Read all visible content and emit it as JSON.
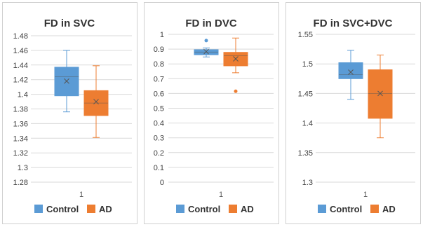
{
  "colors": {
    "control": "#5b9bd5",
    "ad": "#ed7d31",
    "grid": "#d9d9d9"
  },
  "chart_data": [
    {
      "type": "box",
      "title": "FD in SVC",
      "categories": [
        "1"
      ],
      "ylim": [
        1.28,
        1.48
      ],
      "yticks": [
        "1.48",
        "1.46",
        "1.44",
        "1.42",
        "1.4",
        "1.38",
        "1.36",
        "1.34",
        "1.32",
        "1.3",
        "1.28"
      ],
      "grid": true,
      "legend": "bottom",
      "series": [
        {
          "name": "Control",
          "min": 1.376,
          "q1": 1.398,
          "median": 1.424,
          "q3": 1.437,
          "max": 1.46,
          "mean": 1.418,
          "outliers": []
        },
        {
          "name": "AD",
          "min": 1.341,
          "q1": 1.371,
          "median": 1.388,
          "q3": 1.405,
          "max": 1.439,
          "mean": 1.39,
          "outliers": []
        }
      ]
    },
    {
      "type": "box",
      "title": "FD in DVC",
      "categories": [
        "1"
      ],
      "ylim": [
        0,
        1
      ],
      "yticks": [
        "1",
        "0.9",
        "0.8",
        "0.7",
        "0.6",
        "0.5",
        "0.4",
        "0.3",
        "0.2",
        "0.1",
        "0"
      ],
      "grid": true,
      "legend": "bottom",
      "series": [
        {
          "name": "Control",
          "min": 0.847,
          "q1": 0.862,
          "median": 0.88,
          "q3": 0.896,
          "max": 0.908,
          "mean": 0.883,
          "outliers": [
            0.958
          ]
        },
        {
          "name": "AD",
          "min": 0.74,
          "q1": 0.787,
          "median": 0.855,
          "q3": 0.878,
          "max": 0.975,
          "mean": 0.834,
          "outliers": [
            0.615
          ]
        }
      ]
    },
    {
      "type": "box",
      "title": "FD in SVC+DVC",
      "categories": [
        "1"
      ],
      "ylim": [
        1.3,
        1.55
      ],
      "yticks": [
        "1.55",
        "1.5",
        "1.45",
        "1.4",
        "1.35",
        "1.3"
      ],
      "grid": true,
      "legend": "bottom",
      "series": [
        {
          "name": "Control",
          "min": 1.44,
          "q1": 1.475,
          "median": 1.482,
          "q3": 1.502,
          "max": 1.523,
          "mean": 1.486,
          "outliers": []
        },
        {
          "name": "AD",
          "min": 1.375,
          "q1": 1.408,
          "median": 1.45,
          "q3": 1.49,
          "max": 1.515,
          "mean": 1.45,
          "outliers": []
        }
      ]
    }
  ]
}
